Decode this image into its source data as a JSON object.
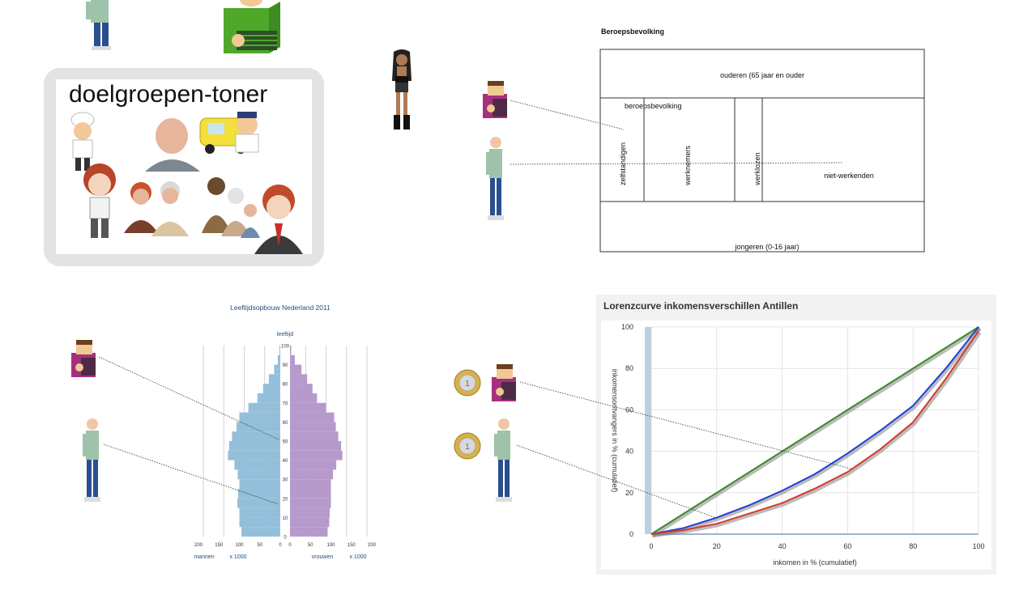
{
  "target_group": {
    "title": "doelgroepen-toner"
  },
  "labor_diagram": {
    "title": "Beroepsbevolking",
    "top_box": "ouderen (65 jaar en ouder",
    "group_label": "beroepsbevolking",
    "col_selfemployed": "zelfstandigen",
    "col_employees": "werknemers",
    "col_unemployed": "werklozen",
    "col_nonworking": "niet-werkenden",
    "bottom_box": "jongeren (0-16 jaar)"
  },
  "pyramid": {
    "title": "Leeftijdsopbouw Nederland 2011",
    "axis_title": "leeftijd",
    "men_label": "mannen",
    "women_label": "vrouwen",
    "unit_left": "x 1000",
    "unit_right": "x 1000"
  },
  "lorenz": {
    "title": "Lorenzcurve inkomensverschillen Antillen",
    "xlabel": "inkomen in % (cumulatief)",
    "ylabel": "inkomensontvangers in % (cumulatief)"
  },
  "chart_data": [
    {
      "type": "bar",
      "title": "Leeftijdsopbouw Nederland 2011",
      "ylabel": "leeftijd",
      "xlabel": "x 1000",
      "orientation": "horizontal",
      "age_ticks": [
        "0",
        "10",
        "20",
        "30",
        "40",
        "50",
        "60",
        "70",
        "80",
        "90",
        "100"
      ],
      "x_ticks_left": [
        "200",
        "150",
        "100",
        "50",
        "0"
      ],
      "x_ticks_right": [
        "0",
        "50",
        "100",
        "150",
        "200"
      ],
      "xlim": [
        0,
        200
      ],
      "ylim": [
        0,
        100
      ],
      "colors": {
        "mannen": "#94bfda",
        "vrouwen": "#b69acc"
      },
      "series": [
        {
          "name": "mannen",
          "ages": [
            0,
            5,
            10,
            15,
            20,
            25,
            30,
            35,
            40,
            45,
            50,
            55,
            60,
            65,
            70,
            75,
            80,
            85,
            90,
            95,
            100
          ],
          "values": [
            95,
            100,
            100,
            105,
            103,
            100,
            104,
            112,
            128,
            125,
            118,
            107,
            100,
            78,
            56,
            42,
            28,
            15,
            6,
            2,
            0
          ]
        },
        {
          "name": "vrouwen",
          "ages": [
            0,
            5,
            10,
            15,
            20,
            25,
            30,
            35,
            40,
            45,
            50,
            55,
            60,
            65,
            70,
            75,
            80,
            85,
            90,
            95,
            100
          ],
          "values": [
            92,
            96,
            97,
            100,
            100,
            100,
            105,
            113,
            128,
            125,
            118,
            112,
            108,
            88,
            66,
            55,
            42,
            28,
            12,
            3,
            0
          ]
        }
      ]
    },
    {
      "type": "line",
      "title": "Lorenzcurve inkomensverschillen Antillen",
      "xlabel": "inkomen in % (cumulatief)",
      "ylabel": "inkomensontvangers in % (cumulatief)",
      "xlim": [
        0,
        100
      ],
      "ylim": [
        0,
        100
      ],
      "x_ticks": [
        "0",
        "20",
        "40",
        "60",
        "80",
        "100"
      ],
      "y_ticks": [
        "0",
        "20",
        "40",
        "60",
        "80",
        "100"
      ],
      "grid": true,
      "series": [
        {
          "color": "#3a8a24",
          "x": [
            0,
            100
          ],
          "y": [
            0,
            100
          ]
        },
        {
          "color": "#1f3fd8",
          "x": [
            0,
            10,
            20,
            30,
            40,
            50,
            60,
            70,
            80,
            90,
            100
          ],
          "y": [
            0,
            3,
            8,
            14,
            21,
            29,
            39,
            50,
            62,
            80,
            100
          ]
        },
        {
          "color": "#d83a2a",
          "x": [
            0,
            10,
            20,
            30,
            40,
            50,
            60,
            70,
            80,
            90,
            100
          ],
          "y": [
            0,
            2,
            5,
            10,
            15,
            22,
            30,
            41,
            54,
            75,
            98
          ]
        }
      ]
    }
  ]
}
